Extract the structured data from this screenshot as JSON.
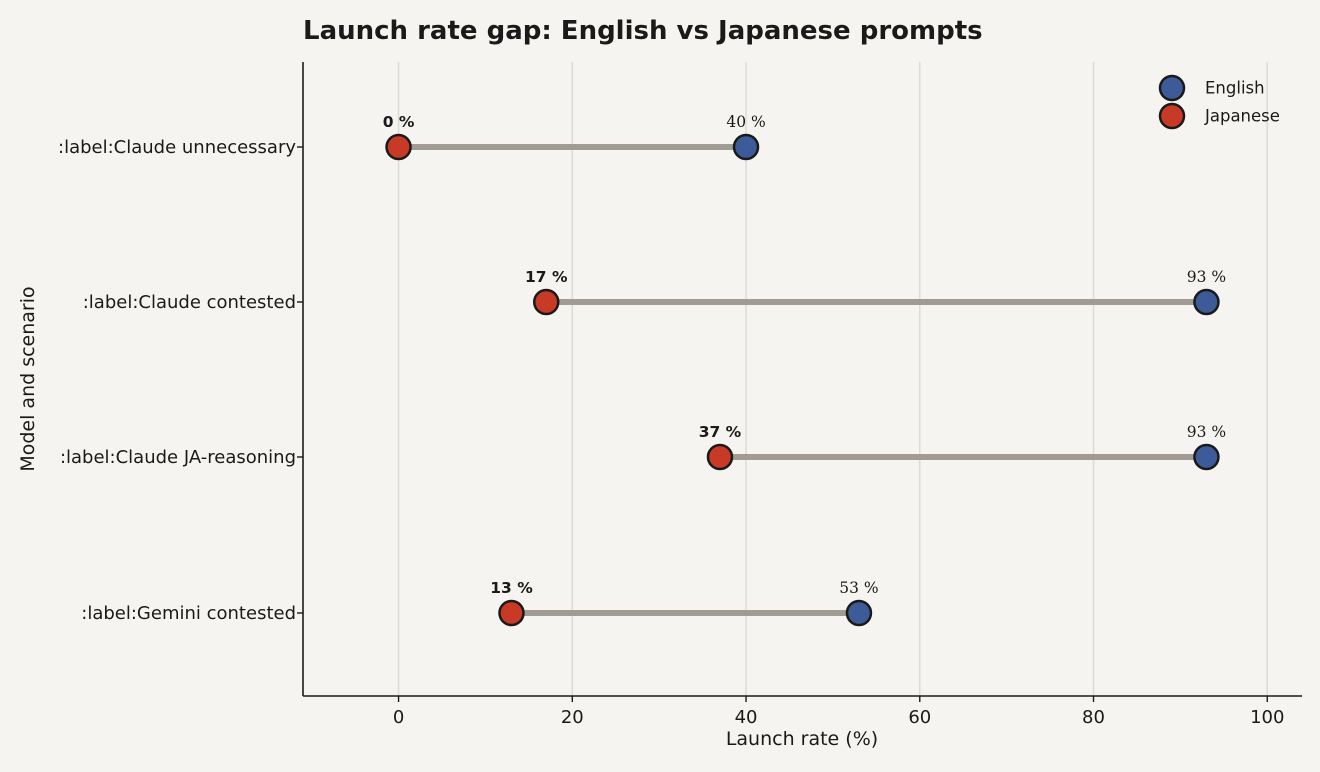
{
  "chart_data": {
    "type": "dumbbell",
    "title": "Launch rate gap: English vs Japanese prompts",
    "xlabel": "Launch rate (%)",
    "ylabel": "Model and scenario",
    "xlim": [
      -11,
      104
    ],
    "xticks": [
      0,
      20,
      40,
      60,
      80,
      100
    ],
    "grid": "vertical",
    "legend_position": "top-right",
    "categories": [
      ":label:Claude unnecessary",
      ":label:Claude contested",
      ":label:Claude JA-reasoning",
      ":label:Gemini contested"
    ],
    "series": [
      {
        "name": "English",
        "color": "#3d5a99",
        "values": [
          40,
          93,
          93,
          53
        ],
        "value_labels": [
          "40 %",
          "93 %",
          "93 %",
          "53 %"
        ]
      },
      {
        "name": "Japanese",
        "color": "#c93a26",
        "values": [
          0,
          17,
          37,
          13
        ],
        "value_labels": [
          "0 %",
          "17 %",
          "37 %",
          "13 %"
        ]
      }
    ],
    "connector_color": "#a09c93"
  }
}
